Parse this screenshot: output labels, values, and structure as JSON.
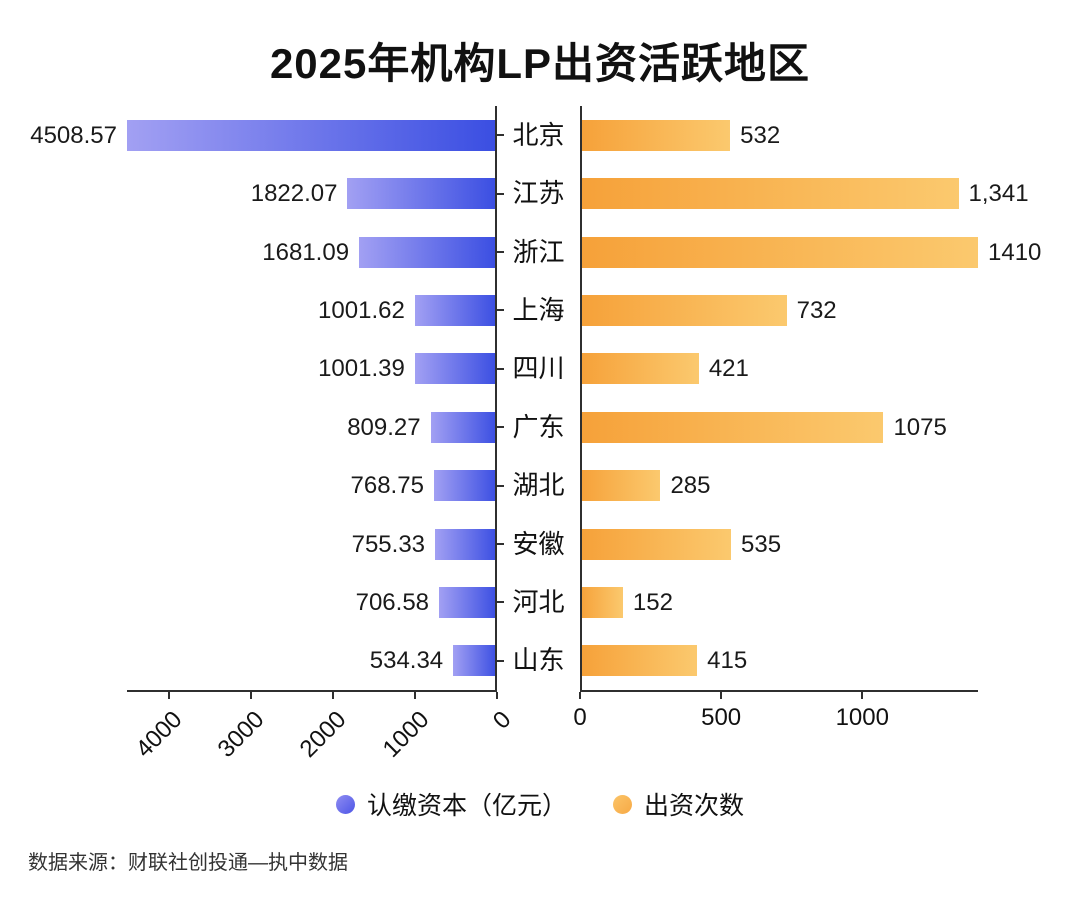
{
  "title": "2025年机构LP出资活跃地区",
  "source": "数据来源：财联社创投通—执中数据",
  "legend": {
    "left": "认缴资本（亿元）",
    "right": "出资次数"
  },
  "colors": {
    "bar_blue_light": "#a2a0f3",
    "bar_blue_dark": "#3a4ee2",
    "bar_orange_dark": "#f6a139",
    "bar_orange_light": "#fbc96e",
    "axis": "#2f2f2f",
    "text": "#111111"
  },
  "chart_data": {
    "type": "bar",
    "variant": "bidirectional-horizontal",
    "title": "2025年机构LP出资活跃地区",
    "legend_position": "bottom",
    "grid": false,
    "categories": [
      "北京",
      "江苏",
      "浙江",
      "上海",
      "四川",
      "广东",
      "湖北",
      "安徽",
      "河北",
      "山东"
    ],
    "series": [
      {
        "name": "认缴资本（亿元）",
        "side": "left",
        "values": [
          4508.57,
          1822.07,
          1681.09,
          1001.62,
          1001.39,
          809.27,
          768.75,
          755.33,
          706.58,
          534.34
        ],
        "labels": [
          "4508.57",
          "1822.07",
          "1681.09",
          "1001.62",
          "1001.39",
          "809.27",
          "768.75",
          "755.33",
          "706.58",
          "534.34"
        ],
        "axis_ticks": [
          4000,
          3000,
          2000,
          1000,
          0
        ],
        "axis_max": 4508.57
      },
      {
        "name": "出资次数",
        "side": "right",
        "values": [
          532,
          1341,
          1410,
          732,
          421,
          1075,
          285,
          535,
          152,
          415
        ],
        "labels": [
          "532",
          "1,341",
          "1410",
          "732",
          "421",
          "1075",
          "285",
          "535",
          "152",
          "415"
        ],
        "axis_ticks": [
          0,
          500,
          1000
        ],
        "axis_max": 1410
      }
    ]
  }
}
